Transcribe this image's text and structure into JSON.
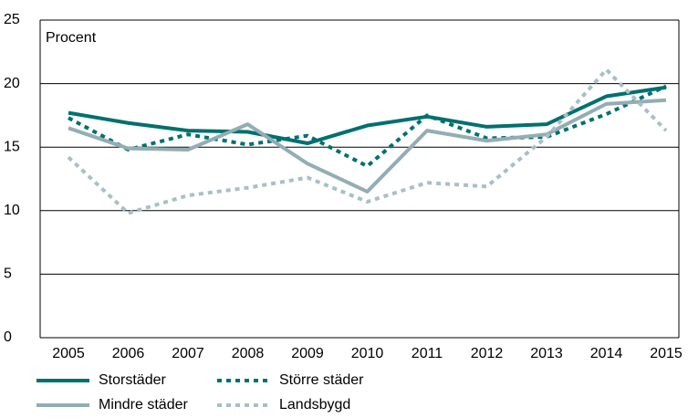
{
  "chart_data": {
    "type": "line",
    "y_label": "Procent",
    "categories": [
      "2005",
      "2006",
      "2007",
      "2008",
      "2009",
      "2010",
      "2011",
      "2012",
      "2013",
      "2014",
      "2015"
    ],
    "series": [
      {
        "name": "Storstäder",
        "color": "#00706e",
        "dashed": false,
        "values": [
          17.7,
          16.9,
          16.3,
          16.2,
          15.3,
          16.7,
          17.4,
          16.6,
          16.8,
          19.0,
          19.7
        ]
      },
      {
        "name": "Större städer",
        "color": "#00706e",
        "dashed": true,
        "values": [
          17.3,
          14.8,
          16.0,
          15.2,
          15.9,
          13.5,
          17.5,
          15.7,
          15.8,
          17.6,
          19.8
        ]
      },
      {
        "name": "Mindre städer",
        "color": "#93adb4",
        "dashed": false,
        "values": [
          16.5,
          14.9,
          14.8,
          16.8,
          13.7,
          11.5,
          16.3,
          15.5,
          16.0,
          18.4,
          18.7
        ]
      },
      {
        "name": "Landsbygd",
        "color": "#a9bfc5",
        "dashed": true,
        "values": [
          14.2,
          9.8,
          11.2,
          11.8,
          12.6,
          10.7,
          12.2,
          11.9,
          15.8,
          21.1,
          16.3
        ]
      }
    ],
    "ylim": [
      0,
      25
    ],
    "yticks": [
      0,
      5,
      10,
      15,
      20,
      25
    ],
    "grid": true
  }
}
